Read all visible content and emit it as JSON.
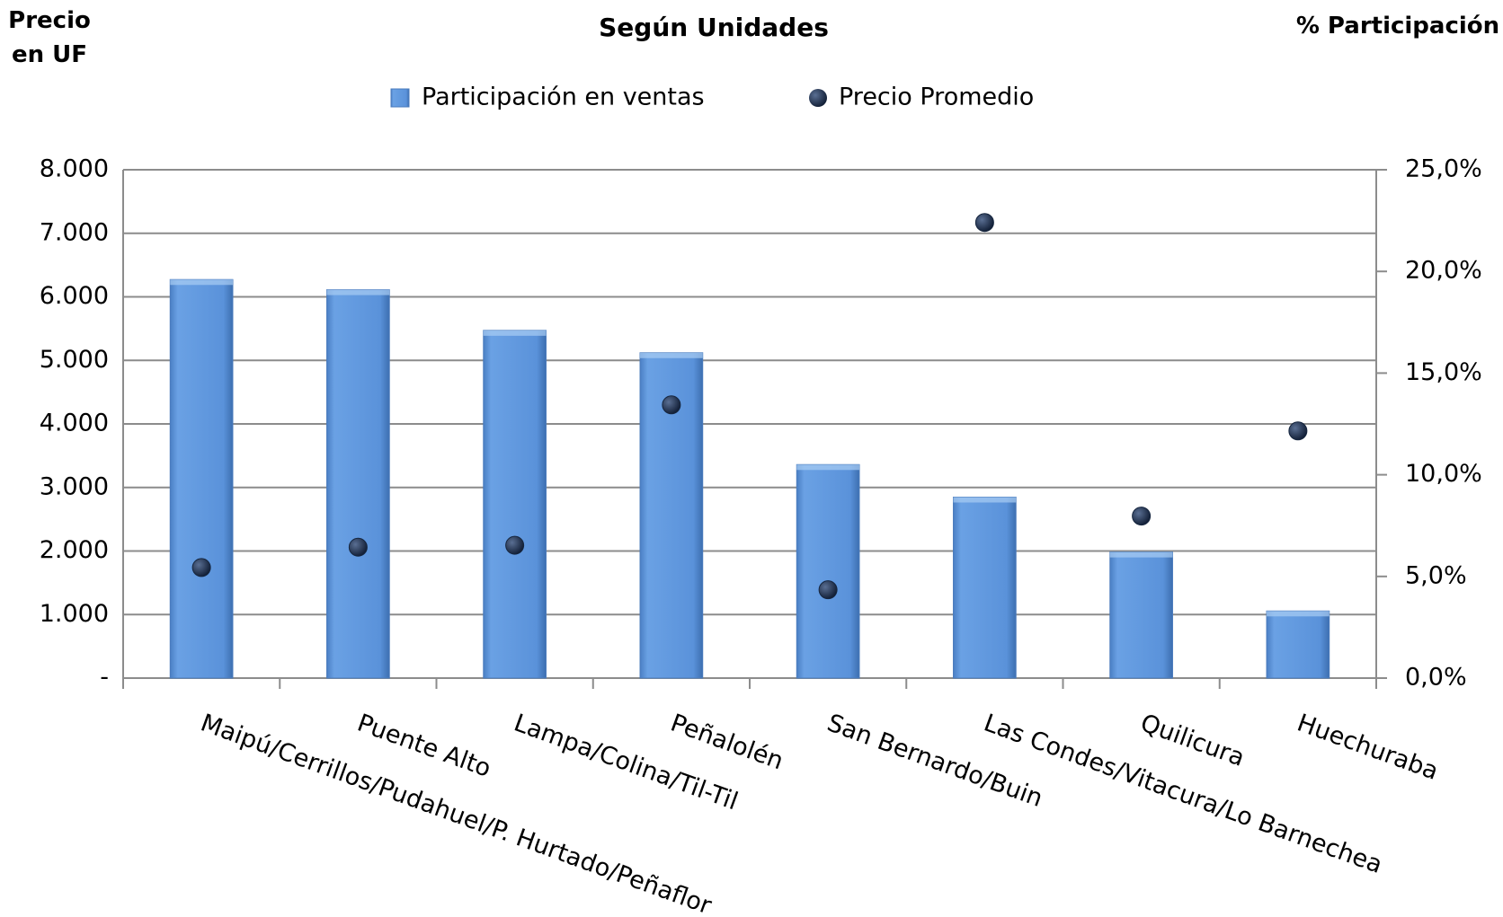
{
  "chart_data": {
    "type": "bar",
    "title": "Según Unidades",
    "y_axis_title": "Precio en UF",
    "y2_axis_title": "% Participación",
    "categories": [
      "Maipú/Cerrillos/Pudahuel/P. Hurtado/Peñaflor",
      "Puente Alto",
      "Lampa/Colina/Til-Til",
      "Peñalolén",
      "San Bernardo/Buin",
      "Las Condes/Vitacura/Lo Barnechea",
      "Quilicura",
      "Huechuraba"
    ],
    "series": [
      {
        "name": "Participación en ventas",
        "type": "bar",
        "axis": "y2",
        "color": "#5b93d9",
        "values": [
          19.6,
          19.1,
          17.1,
          16.0,
          10.5,
          8.9,
          6.2,
          3.3
        ]
      },
      {
        "name": "Precio Promedio",
        "type": "scatter",
        "color": "#16263f",
        "values": [
          1740,
          2060,
          2090,
          4300,
          1390,
          7170,
          2550,
          3890
        ]
      }
    ],
    "ylim": [
      0,
      8000
    ],
    "yticks": [
      {
        "value": 0,
        "label": "-"
      },
      {
        "value": 1000,
        "label": "1.000"
      },
      {
        "value": 2000,
        "label": "2.000"
      },
      {
        "value": 3000,
        "label": "3.000"
      },
      {
        "value": 4000,
        "label": "4.000"
      },
      {
        "value": 5000,
        "label": "5.000"
      },
      {
        "value": 6000,
        "label": "6.000"
      },
      {
        "value": 7000,
        "label": "7.000"
      },
      {
        "value": 8000,
        "label": "8.000"
      }
    ],
    "y2lim": [
      0,
      25
    ],
    "y2ticks": [
      {
        "value": 0,
        "label": "0,0%"
      },
      {
        "value": 5,
        "label": "5,0%"
      },
      {
        "value": 10,
        "label": "10,0%"
      },
      {
        "value": 15,
        "label": "15,0%"
      },
      {
        "value": 20,
        "label": "20,0%"
      },
      {
        "value": 25,
        "label": "25,0%"
      }
    ],
    "grid": true
  }
}
